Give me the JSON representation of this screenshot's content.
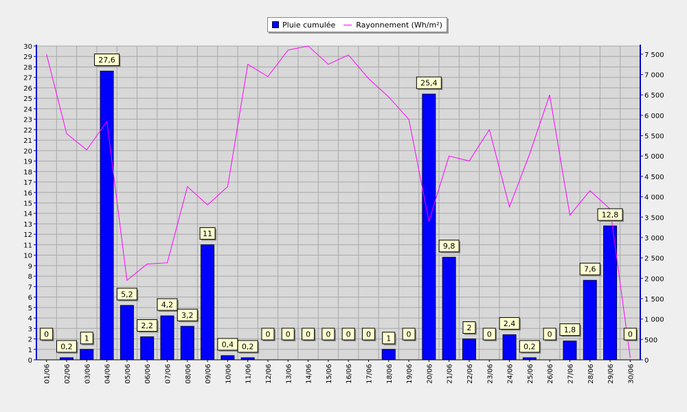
{
  "chart_data": {
    "type": "bar",
    "title": "",
    "categories": [
      "01/06",
      "02/06",
      "03/06",
      "04/06",
      "05/06",
      "06/06",
      "07/06",
      "08/06",
      "09/06",
      "10/06",
      "11/06",
      "12/06",
      "13/06",
      "14/06",
      "15/06",
      "16/06",
      "17/06",
      "18/06",
      "19/06",
      "20/06",
      "21/06",
      "22/06",
      "23/06",
      "24/06",
      "25/06",
      "26/06",
      "27/06",
      "28/06",
      "29/06",
      "30/06"
    ],
    "series": [
      {
        "name": "Pluie cumulée",
        "type": "bar",
        "axis": "left",
        "color": "#0000ff",
        "values": [
          0,
          0.2,
          1,
          27.6,
          5.2,
          2.2,
          4.2,
          3.2,
          11,
          0.4,
          0.2,
          0,
          0,
          0,
          0,
          0,
          0,
          1,
          0,
          25.4,
          9.8,
          2,
          0,
          2.4,
          0.2,
          0,
          1.8,
          7.6,
          12.8,
          0
        ],
        "labels": [
          "0",
          "0,2",
          "1",
          "27,6",
          "5,2",
          "2,2",
          "4,2",
          "3,2",
          "11",
          "0,4",
          "0,2",
          "0",
          "0",
          "0",
          "0",
          "0",
          "0",
          "1",
          "0",
          "25,4",
          "9,8",
          "2",
          "0",
          "2,4",
          "0,2",
          "0",
          "1,8",
          "7,6",
          "12,8",
          "0"
        ]
      },
      {
        "name": "Rayonnement (Wh/m²)",
        "type": "line",
        "axis": "right",
        "color": "#ff00ff",
        "values": [
          7500,
          5550,
          5150,
          5850,
          1950,
          2350,
          2380,
          4250,
          3800,
          4250,
          7250,
          6950,
          7600,
          7700,
          7250,
          7480,
          6900,
          6450,
          5900,
          3400,
          5000,
          4880,
          5650,
          3750,
          5050,
          6500,
          3550,
          4150,
          3700,
          50
        ]
      }
    ],
    "y_left": {
      "min": 0,
      "max": 30,
      "step": 1
    },
    "y_right": {
      "min": 0,
      "max": 7700,
      "step": 500,
      "ticks": [
        "0",
        "500",
        "1 000",
        "1 500",
        "2 000",
        "2 500",
        "3 000",
        "3 500",
        "4 000",
        "4 500",
        "5 000",
        "5 500",
        "6 000",
        "6 500",
        "7 000",
        "7 500"
      ]
    },
    "grid": true,
    "legend_placement": "top-center",
    "colors": {
      "background": "#efefef",
      "plot": "#d8d8d8",
      "grid": "#a8a8a8",
      "axis": "#0000cc",
      "label_bg": "#ffffd0"
    }
  }
}
